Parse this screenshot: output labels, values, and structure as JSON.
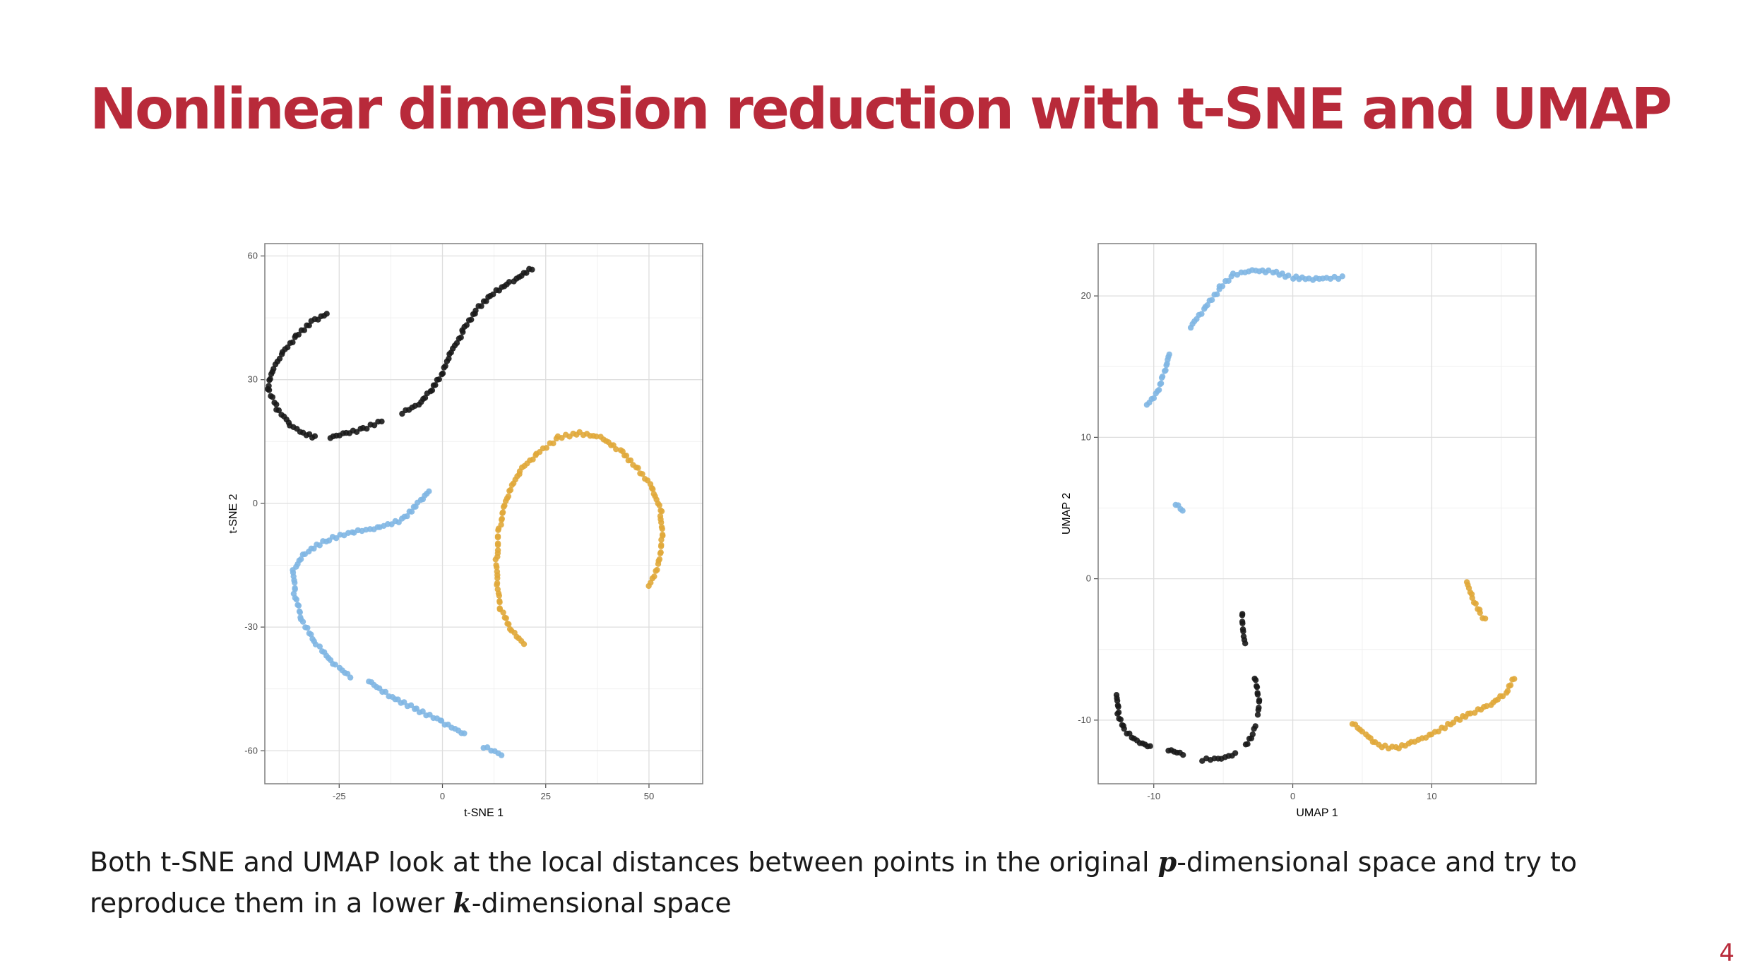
{
  "slide": {
    "title": "Nonlinear dimension reduction with t-SNE and UMAP",
    "caption": {
      "part1": "Both t-SNE and UMAP look at the local distances between points in the original ",
      "var_p": "p",
      "part2": "-dimensional space and try to reproduce them in a lower ",
      "var_k": "k",
      "part3": "-dimensional space"
    },
    "page_number": "4"
  },
  "colors": {
    "black": "#1a1a1a",
    "blue": "#7fb6e3",
    "gold": "#e0a83a"
  },
  "chart_data": [
    {
      "type": "scatter",
      "xlabel": "t-SNE 1",
      "ylabel": "t-SNE 2",
      "xlim": [
        -43,
        63
      ],
      "ylim": [
        -68,
        63
      ],
      "xticks": [
        -25,
        0,
        25,
        50
      ],
      "yticks": [
        -60,
        -30,
        0,
        30,
        60
      ],
      "grid": true,
      "series": [
        {
          "color": "black",
          "segments": [
            [
              [
                -28,
                46
              ],
              [
                -32,
                44
              ],
              [
                -36,
                40
              ],
              [
                -39,
                36
              ],
              [
                -41,
                32
              ],
              [
                -42,
                28
              ],
              [
                -40,
                23
              ],
              [
                -37,
                19
              ],
              [
                -34,
                17
              ],
              [
                -31,
                16
              ]
            ],
            [
              [
                -27,
                16
              ],
              [
                -23,
                17
              ],
              [
                -19,
                18
              ],
              [
                -15,
                20
              ]
            ],
            [
              [
                -10,
                22
              ],
              [
                -6,
                24
              ],
              [
                -3,
                27
              ],
              [
                0,
                31
              ],
              [
                2,
                36
              ],
              [
                5,
                42
              ],
              [
                8,
                47
              ],
              [
                12,
                51
              ],
              [
                17,
                54
              ],
              [
                22,
                57
              ]
            ]
          ]
        },
        {
          "color": "blue",
          "segments": [
            [
              [
                -3,
                3
              ],
              [
                -6,
                0
              ],
              [
                -10,
                -4
              ],
              [
                -16,
                -6
              ],
              [
                -22,
                -7
              ],
              [
                -28,
                -9
              ],
              [
                -33,
                -12
              ],
              [
                -36,
                -16
              ],
              [
                -36,
                -22
              ],
              [
                -34,
                -29
              ],
              [
                -30,
                -35
              ],
              [
                -25,
                -40
              ],
              [
                -22,
                -42
              ]
            ],
            [
              [
                -18,
                -43
              ],
              [
                -12,
                -47
              ],
              [
                -6,
                -50
              ],
              [
                0,
                -53
              ],
              [
                5,
                -56
              ]
            ],
            [
              [
                10,
                -59
              ],
              [
                14,
                -61
              ]
            ]
          ]
        },
        {
          "color": "gold",
          "segments": [
            [
              [
                20,
                -34
              ],
              [
                17,
                -31
              ],
              [
                14,
                -26
              ],
              [
                13,
                -20
              ],
              [
                13,
                -13
              ],
              [
                14,
                -5
              ],
              [
                16,
                2
              ],
              [
                19,
                8
              ],
              [
                23,
                12
              ],
              [
                28,
                16
              ],
              [
                33,
                17
              ],
              [
                38,
                16
              ],
              [
                43,
                13
              ],
              [
                47,
                9
              ],
              [
                51,
                4
              ],
              [
                53,
                -3
              ],
              [
                53,
                -9
              ],
              [
                52,
                -15
              ],
              [
                50,
                -20
              ]
            ]
          ]
        }
      ]
    },
    {
      "type": "scatter",
      "xlabel": "UMAP 1",
      "ylabel": "UMAP 2",
      "xlim": [
        -14,
        17.5
      ],
      "ylim": [
        -14.5,
        23.7
      ],
      "xticks": [
        -10,
        0,
        10
      ],
      "yticks": [
        -10,
        0,
        10,
        20
      ],
      "grid": true,
      "series": [
        {
          "color": "blue",
          "segments": [
            [
              [
                -10.5,
                12.3
              ],
              [
                -9.8,
                13.2
              ],
              [
                -9.3,
                14.6
              ],
              [
                -8.8,
                15.9
              ]
            ],
            [
              [
                -7.3,
                17.8
              ],
              [
                -6.2,
                19.2
              ],
              [
                -5.2,
                20.6
              ],
              [
                -4.3,
                21.5
              ],
              [
                -3.0,
                21.8
              ],
              [
                -1.5,
                21.7
              ],
              [
                0.0,
                21.3
              ],
              [
                1.5,
                21.2
              ],
              [
                3.5,
                21.3
              ]
            ],
            [
              [
                -8.5,
                5.3
              ],
              [
                -8.0,
                4.8
              ]
            ]
          ]
        },
        {
          "color": "black",
          "segments": [
            [
              [
                -12.6,
                -8.2
              ],
              [
                -12.6,
                -9.6
              ],
              [
                -12.2,
                -10.7
              ],
              [
                -11.3,
                -11.5
              ],
              [
                -10.2,
                -11.9
              ]
            ],
            [
              [
                -9.0,
                -12.1
              ],
              [
                -7.8,
                -12.4
              ]
            ],
            [
              [
                -6.5,
                -12.8
              ],
              [
                -5.2,
                -12.7
              ],
              [
                -4.2,
                -12.4
              ]
            ],
            [
              [
                -3.6,
                -2.4
              ],
              [
                -3.5,
                -3.5
              ],
              [
                -3.4,
                -4.6
              ]
            ],
            [
              [
                -2.8,
                -7.0
              ],
              [
                -2.5,
                -8.5
              ],
              [
                -2.5,
                -9.6
              ]
            ],
            [
              [
                -2.6,
                -10.4
              ],
              [
                -2.9,
                -11.2
              ],
              [
                -3.4,
                -11.8
              ]
            ]
          ]
        },
        {
          "color": "gold",
          "segments": [
            [
              [
                12.6,
                -0.2
              ],
              [
                13.0,
                -1.4
              ],
              [
                13.5,
                -2.5
              ],
              [
                13.8,
                -2.9
              ]
            ],
            [
              [
                4.2,
                -10.2
              ],
              [
                5.2,
                -11.0
              ],
              [
                6.2,
                -11.8
              ],
              [
                7.5,
                -12.0
              ],
              [
                8.6,
                -11.6
              ],
              [
                10.0,
                -11.0
              ],
              [
                11.5,
                -10.1
              ],
              [
                13.0,
                -9.4
              ],
              [
                14.2,
                -8.9
              ],
              [
                15.4,
                -8.1
              ],
              [
                16.0,
                -7.0
              ]
            ]
          ]
        }
      ]
    }
  ]
}
